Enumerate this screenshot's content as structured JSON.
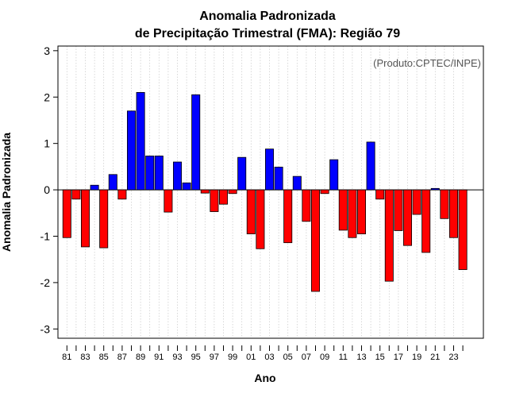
{
  "chart_data": {
    "type": "bar",
    "title": "Anomalia Padronizada",
    "subtitle": "de Precipitação Trimestral (FMA): Região 79",
    "xlabel": "Ano",
    "ylabel": "Anomalia Padronizada",
    "source_label": "(Produto:CPTEC/INPE)",
    "ylim": [
      -3.2,
      3.1
    ],
    "yticks": [
      -3,
      -2,
      -1,
      0,
      1,
      2,
      3
    ],
    "ytick_labels": [
      "-3",
      "-2",
      "-1",
      "0",
      "1",
      "2",
      "3"
    ],
    "grid": "vertical dotted",
    "positive_color": "#0000ff",
    "negative_color": "#ff0000",
    "categories": [
      "1981",
      "1982",
      "1983",
      "1984",
      "1985",
      "1986",
      "1987",
      "1988",
      "1989",
      "1990",
      "1991",
      "1992",
      "1993",
      "1994",
      "1995",
      "1996",
      "1997",
      "1998",
      "1999",
      "2000",
      "2001",
      "2002",
      "2003",
      "2004",
      "2005",
      "2006",
      "2007",
      "2008",
      "2009",
      "2010",
      "2011",
      "2012",
      "2013",
      "2014",
      "2015",
      "2016",
      "2017",
      "2018",
      "2019",
      "2020",
      "2021",
      "2022",
      "2023",
      "2024"
    ],
    "xtick_labels": [
      "81",
      "83",
      "85",
      "87",
      "89",
      "91",
      "93",
      "95",
      "97",
      "99",
      "01",
      "03",
      "05",
      "07",
      "09",
      "11",
      "13",
      "15",
      "17",
      "19",
      "21",
      "23"
    ],
    "values": [
      -1.03,
      -0.2,
      -1.23,
      0.1,
      -1.25,
      0.33,
      -0.2,
      1.7,
      2.1,
      0.73,
      0.73,
      -0.48,
      0.6,
      0.15,
      2.05,
      -0.07,
      -0.47,
      -0.31,
      -0.08,
      0.7,
      -0.95,
      -1.27,
      0.88,
      0.49,
      -1.14,
      0.29,
      -0.68,
      -2.19,
      -0.08,
      0.65,
      -0.87,
      -1.03,
      -0.95,
      1.03,
      -0.2,
      -1.97,
      -0.88,
      -1.2,
      -0.53,
      -1.35,
      0.03,
      -0.62,
      -1.03,
      -1.72
    ]
  }
}
